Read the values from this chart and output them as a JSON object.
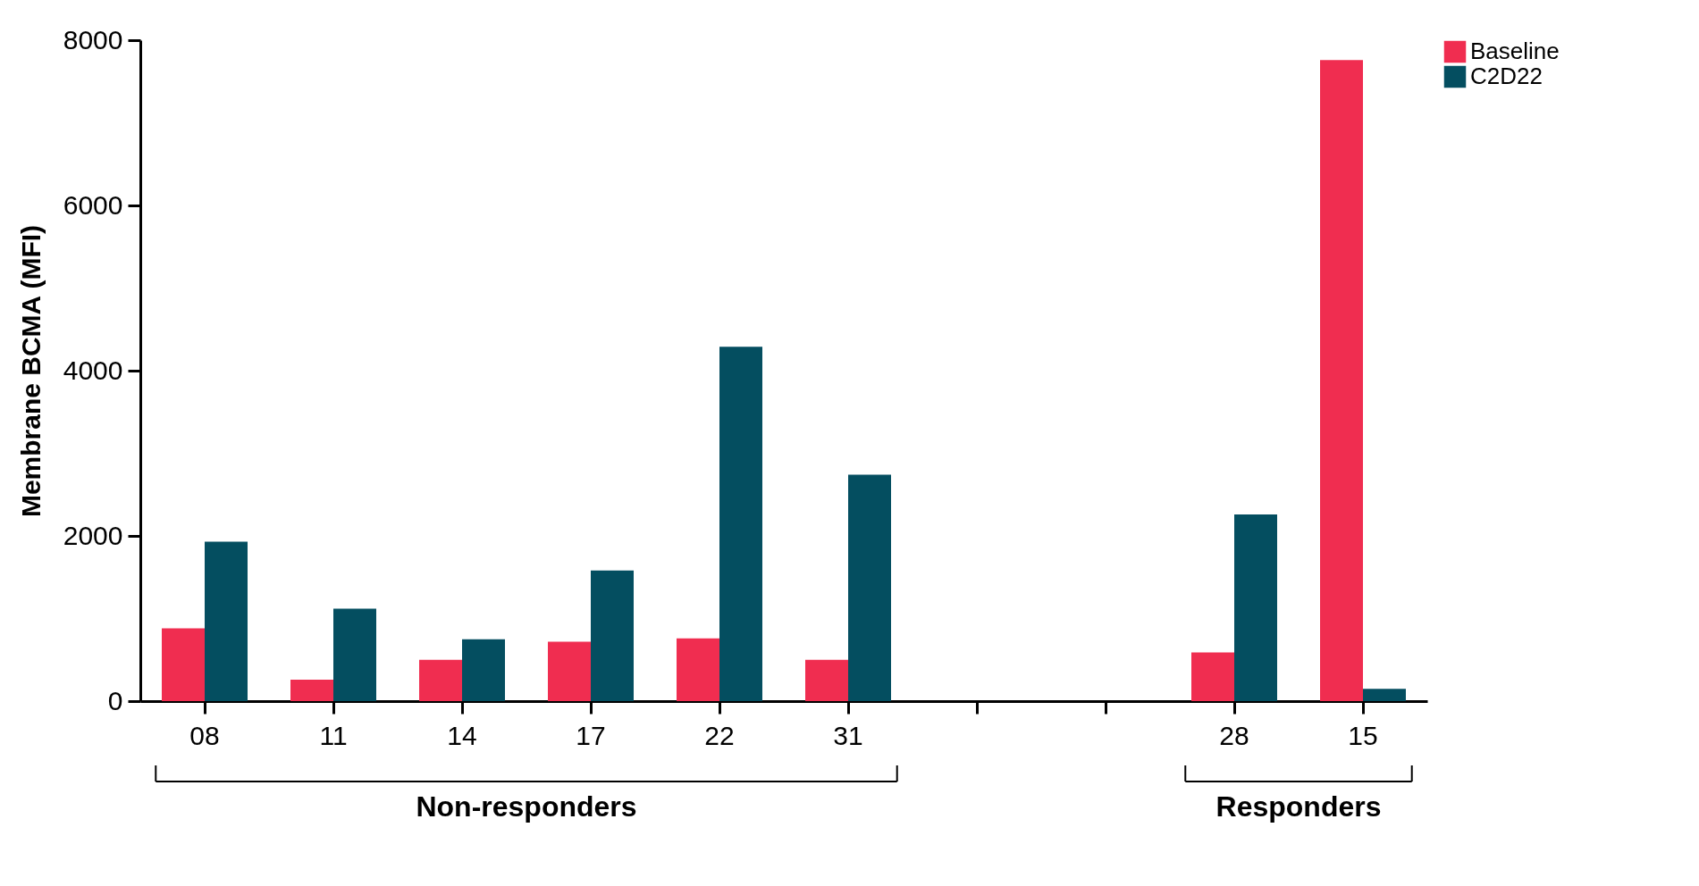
{
  "chart_data": {
    "type": "bar",
    "ylabel": "Membrane BCMA (MFI)",
    "categories": [
      "08",
      "11",
      "14",
      "17",
      "22",
      "31",
      null,
      null,
      "28",
      "15"
    ],
    "series": [
      {
        "name": "Baseline",
        "color": "#f02d50",
        "values": [
          880,
          260,
          500,
          720,
          760,
          500,
          null,
          null,
          590,
          7760
        ]
      },
      {
        "name": "C2D22",
        "color": "#044e60",
        "values": [
          1930,
          1120,
          750,
          1580,
          4290,
          2740,
          null,
          null,
          2260,
          150
        ]
      }
    ],
    "ylim": [
      0,
      8000
    ],
    "yticks": [
      0,
      2000,
      4000,
      6000,
      8000
    ],
    "annotations": [
      "Non-responders",
      "Responders"
    ],
    "grid": false,
    "legend": "right"
  }
}
